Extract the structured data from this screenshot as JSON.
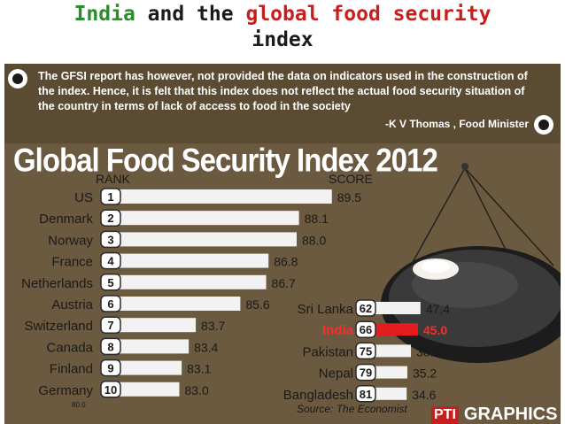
{
  "slide_title": {
    "part1": "India",
    "part2": "and the",
    "part3": "global food security",
    "part4": "index"
  },
  "quote": {
    "text": "The GFSI report has however, not provided the data on indicators used in the construction of the index. Hence, it is felt that this index does not reflect the actual food security situation of the country in terms of lack of access to food in the society",
    "attribution": "-K V Thomas , Food Minister"
  },
  "heading": "Global Food Security Index 2012",
  "colors": {
    "background": "#6b5a3f",
    "bar": "#f2f2f2",
    "india_bar": "#e31d1d",
    "badge": "#ffffff"
  },
  "chart_data": {
    "type": "bar",
    "columns": {
      "rank": "RANK",
      "score": "SCORE"
    },
    "axis_min_label": "80.0",
    "xlim": [
      80,
      90
    ],
    "top_countries": [
      {
        "country": "US",
        "rank": "1",
        "score": 89.5,
        "label": "89.5"
      },
      {
        "country": "Denmark",
        "rank": "2",
        "score": 88.1,
        "label": "88.1"
      },
      {
        "country": "Norway",
        "rank": "3",
        "score": 88.0,
        "label": "88.0"
      },
      {
        "country": "France",
        "rank": "4",
        "score": 86.8,
        "label": "86.8"
      },
      {
        "country": "Netherlands",
        "rank": "5",
        "score": 86.7,
        "label": "86.7"
      },
      {
        "country": "Austria",
        "rank": "6",
        "score": 85.6,
        "label": "85.6"
      },
      {
        "country": "Switzerland",
        "rank": "7",
        "score": 83.7,
        "label": "83.7"
      },
      {
        "country": "Canada",
        "rank": "8",
        "score": 83.4,
        "label": "83.4"
      },
      {
        "country": "Finland",
        "rank": "9",
        "score": 83.1,
        "label": "83.1"
      },
      {
        "country": "Germany",
        "rank": "10",
        "score": 83.0,
        "label": "83.0"
      }
    ],
    "south_asia": [
      {
        "country": "Sri Lanka",
        "rank": "62",
        "score": 47.4,
        "label": "47.4"
      },
      {
        "country": "India",
        "rank": "66",
        "score": 45.0,
        "label": "45.0",
        "highlight": true
      },
      {
        "country": "Pakistan",
        "rank": "75",
        "score": 38.5,
        "label": "38.5"
      },
      {
        "country": "Nepal",
        "rank": "79",
        "score": 35.2,
        "label": "35.2"
      },
      {
        "country": "Bangladesh",
        "rank": "81",
        "score": 34.6,
        "label": "34.6"
      }
    ],
    "source": "Source: The Economist"
  },
  "brand": {
    "pti": "PTI",
    "graphics": "GRAPHICS"
  }
}
